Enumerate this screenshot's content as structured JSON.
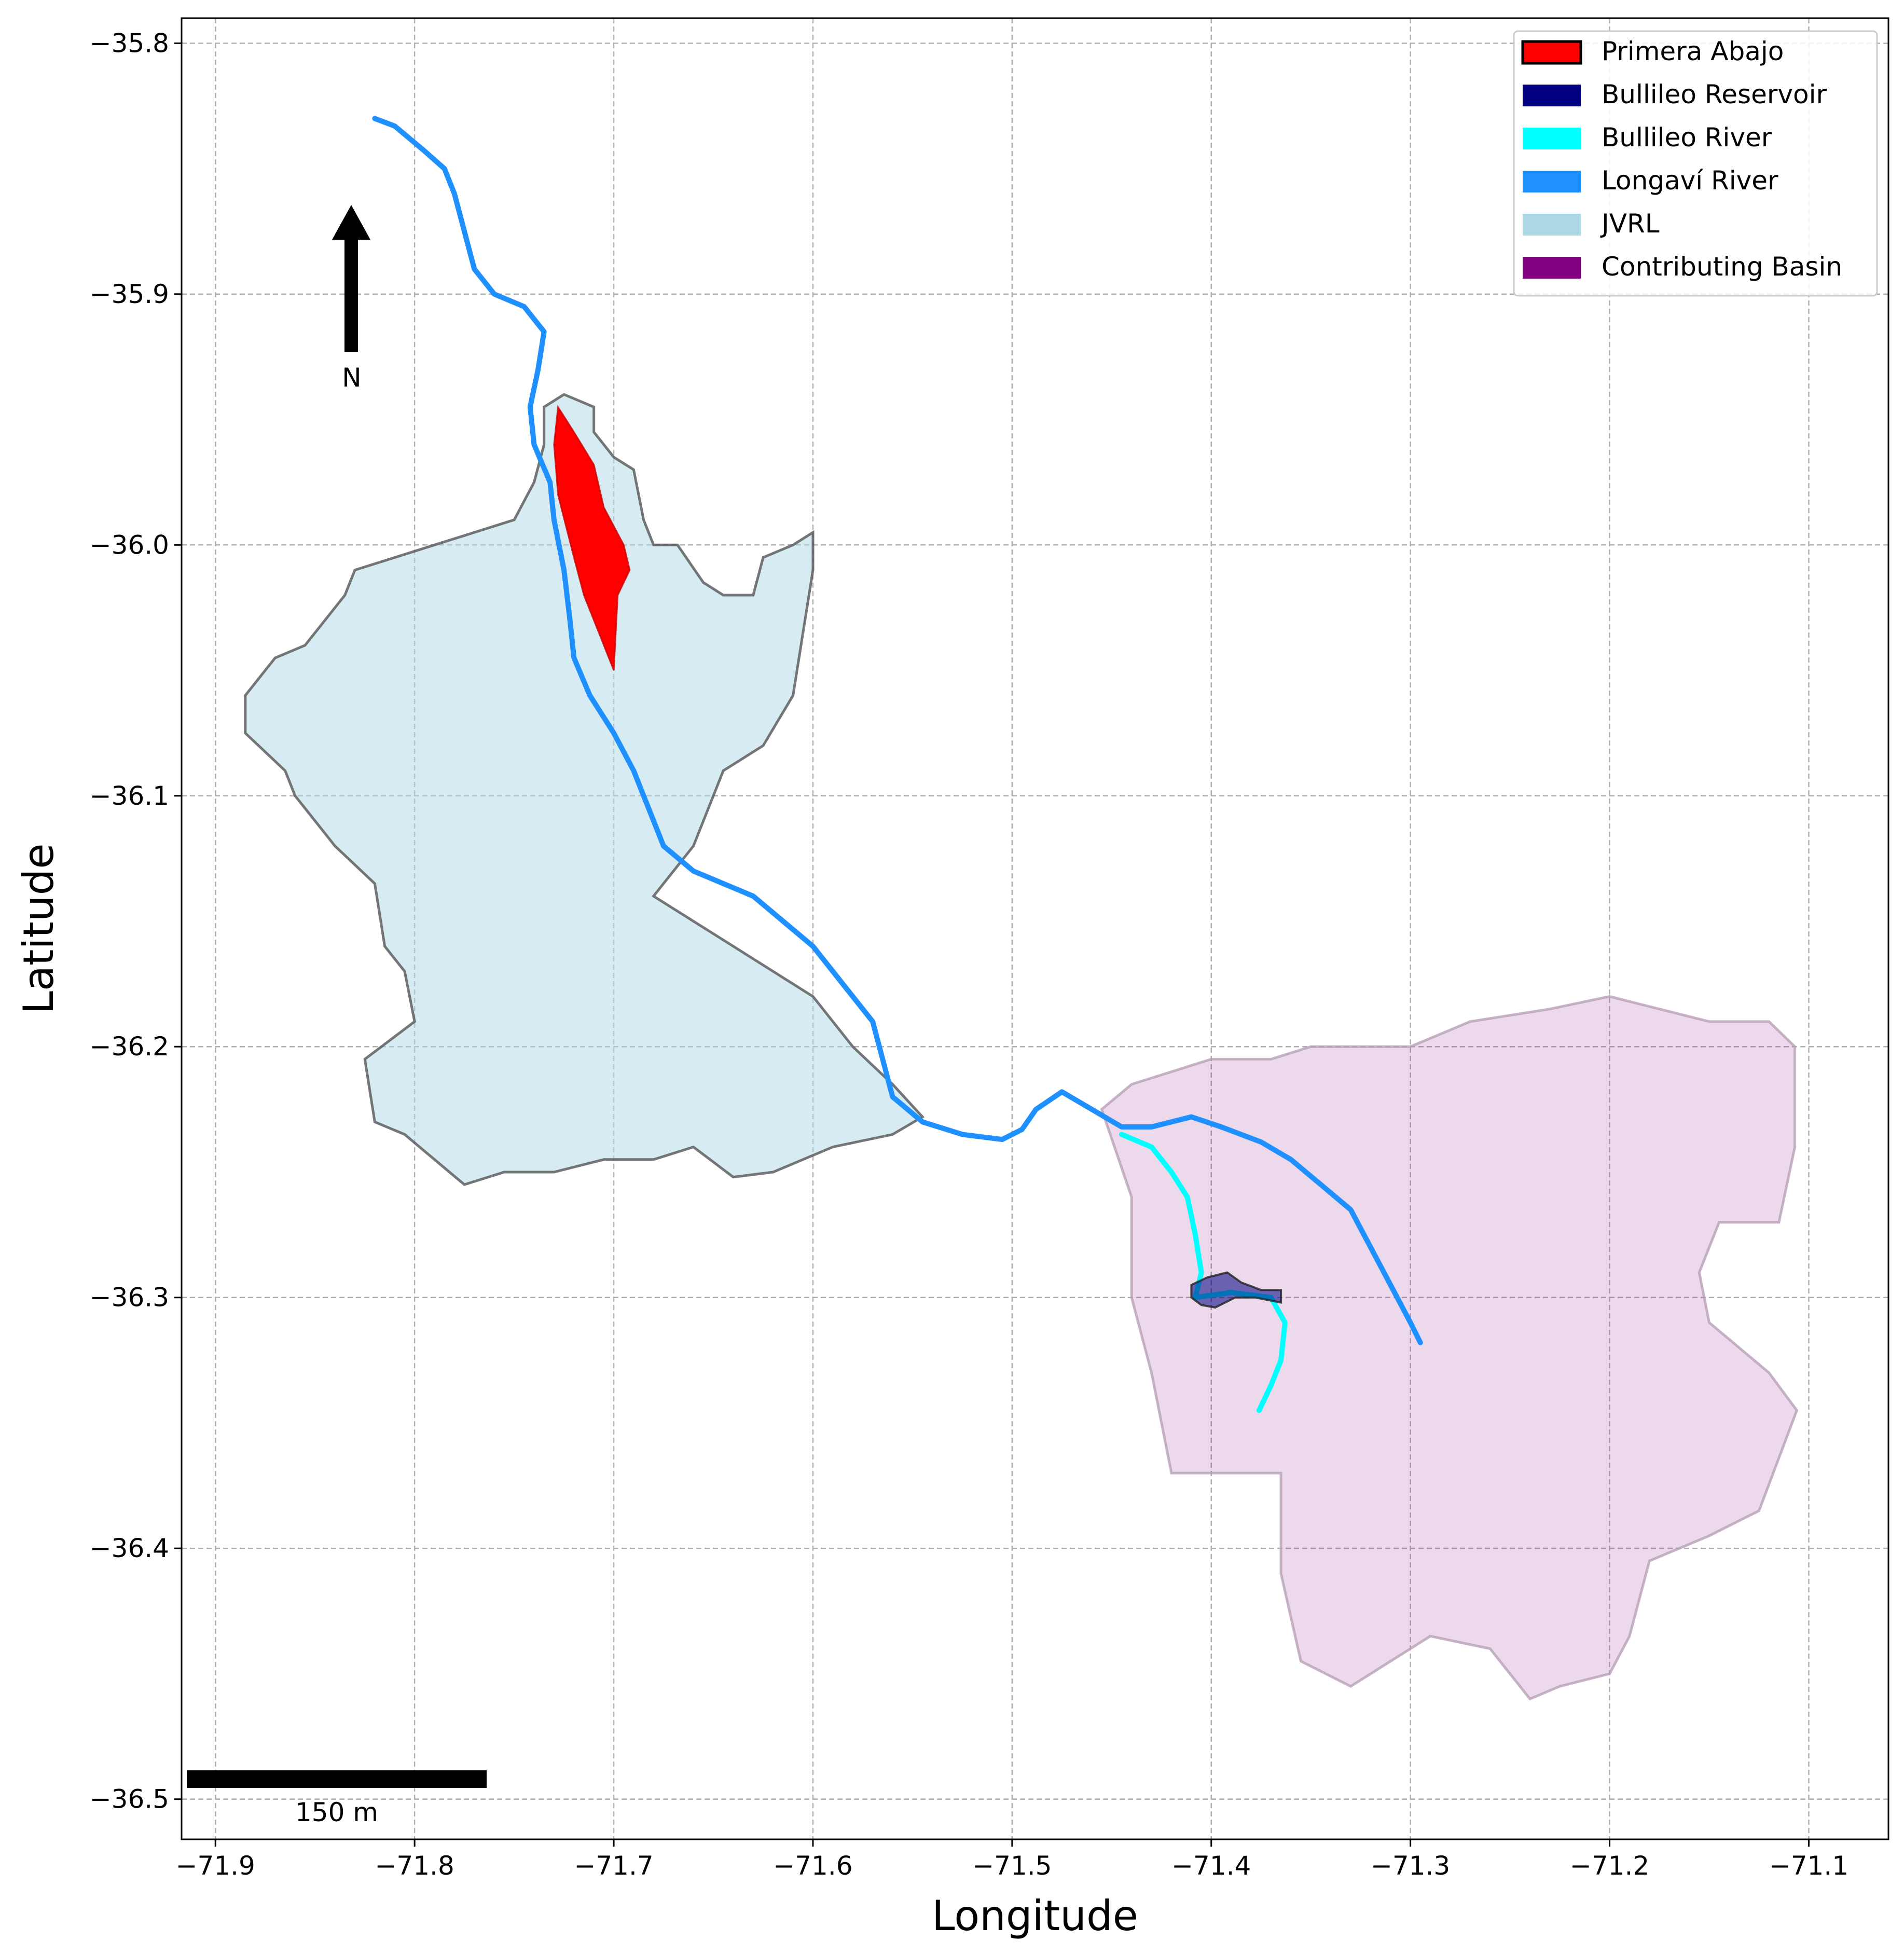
{
  "chart_data": {
    "type": "map",
    "xlabel": "Longitude",
    "ylabel": "Latitude",
    "xlim": [
      -71.917,
      -71.06
    ],
    "ylim": [
      -36.516,
      -35.79
    ],
    "x_ticks": [
      {
        "value": -71.9,
        "label": "−71.9"
      },
      {
        "value": -71.8,
        "label": "−71.8"
      },
      {
        "value": -71.7,
        "label": "−71.7"
      },
      {
        "value": -71.6,
        "label": "−71.6"
      },
      {
        "value": -71.5,
        "label": "−71.5"
      },
      {
        "value": -71.4,
        "label": "−71.4"
      },
      {
        "value": -71.3,
        "label": "−71.3"
      },
      {
        "value": -71.2,
        "label": "−71.2"
      },
      {
        "value": -71.1,
        "label": "−71.1"
      }
    ],
    "y_ticks": [
      {
        "value": -35.8,
        "label": "−35.8"
      },
      {
        "value": -35.9,
        "label": "−35.9"
      },
      {
        "value": -36.0,
        "label": "−36.0"
      },
      {
        "value": -36.1,
        "label": "−36.1"
      },
      {
        "value": -36.2,
        "label": "−36.2"
      },
      {
        "value": -36.3,
        "label": "−36.3"
      },
      {
        "value": -36.4,
        "label": "−36.4"
      },
      {
        "value": -36.5,
        "label": "−36.5"
      }
    ],
    "grid": true,
    "legend_position": "top-right",
    "north_arrow_label": "N",
    "scale_bar_label": "150 m",
    "layers": [
      {
        "name": "Contributing Basin",
        "color": "#800080",
        "fill_opacity": 0.15,
        "kind": "polygon",
        "coords": [
          [
            -71.455,
            -36.225
          ],
          [
            -71.44,
            -36.215
          ],
          [
            -71.42,
            -36.21
          ],
          [
            -71.4,
            -36.205
          ],
          [
            -71.37,
            -36.205
          ],
          [
            -71.35,
            -36.2
          ],
          [
            -71.3,
            -36.2
          ],
          [
            -71.27,
            -36.19
          ],
          [
            -71.23,
            -36.185
          ],
          [
            -71.2,
            -36.18
          ],
          [
            -71.175,
            -36.185
          ],
          [
            -71.15,
            -36.19
          ],
          [
            -71.12,
            -36.19
          ],
          [
            -71.107,
            -36.2
          ],
          [
            -71.107,
            -36.24
          ],
          [
            -71.115,
            -36.27
          ],
          [
            -71.145,
            -36.27
          ],
          [
            -71.155,
            -36.29
          ],
          [
            -71.15,
            -36.31
          ],
          [
            -71.12,
            -36.33
          ],
          [
            -71.106,
            -36.345
          ],
          [
            -71.125,
            -36.385
          ],
          [
            -71.15,
            -36.395
          ],
          [
            -71.18,
            -36.405
          ],
          [
            -71.19,
            -36.435
          ],
          [
            -71.2,
            -36.45
          ],
          [
            -71.225,
            -36.455
          ],
          [
            -71.24,
            -36.46
          ],
          [
            -71.26,
            -36.44
          ],
          [
            -71.29,
            -36.435
          ],
          [
            -71.31,
            -36.445
          ],
          [
            -71.33,
            -36.455
          ],
          [
            -71.355,
            -36.445
          ],
          [
            -71.365,
            -36.41
          ],
          [
            -71.365,
            -36.37
          ],
          [
            -71.4,
            -36.37
          ],
          [
            -71.42,
            -36.37
          ],
          [
            -71.43,
            -36.33
          ],
          [
            -71.44,
            -36.3
          ],
          [
            -71.44,
            -36.26
          ],
          [
            -71.455,
            -36.225
          ]
        ]
      },
      {
        "name": "JVRL",
        "color": "#add8e6",
        "fill_opacity": 0.5,
        "kind": "polygon",
        "coords": [
          [
            -71.735,
            -35.945
          ],
          [
            -71.725,
            -35.94
          ],
          [
            -71.71,
            -35.945
          ],
          [
            -71.71,
            -35.955
          ],
          [
            -71.7,
            -35.965
          ],
          [
            -71.69,
            -35.97
          ],
          [
            -71.685,
            -35.99
          ],
          [
            -71.68,
            -36.0
          ],
          [
            -71.668,
            -36.0
          ],
          [
            -71.655,
            -36.015
          ],
          [
            -71.645,
            -36.02
          ],
          [
            -71.63,
            -36.02
          ],
          [
            -71.625,
            -36.005
          ],
          [
            -71.61,
            -36.0
          ],
          [
            -71.6,
            -35.995
          ],
          [
            -71.6,
            -36.01
          ],
          [
            -71.61,
            -36.06
          ],
          [
            -71.625,
            -36.08
          ],
          [
            -71.645,
            -36.09
          ],
          [
            -71.66,
            -36.12
          ],
          [
            -71.68,
            -36.14
          ],
          [
            -71.6,
            -36.18
          ],
          [
            -71.58,
            -36.2
          ],
          [
            -71.56,
            -36.215
          ],
          [
            -71.545,
            -36.228
          ],
          [
            -71.56,
            -36.235
          ],
          [
            -71.59,
            -36.24
          ],
          [
            -71.62,
            -36.25
          ],
          [
            -71.64,
            -36.252
          ],
          [
            -71.66,
            -36.24
          ],
          [
            -71.68,
            -36.245
          ],
          [
            -71.705,
            -36.245
          ],
          [
            -71.73,
            -36.25
          ],
          [
            -71.755,
            -36.25
          ],
          [
            -71.775,
            -36.255
          ],
          [
            -71.79,
            -36.245
          ],
          [
            -71.805,
            -36.235
          ],
          [
            -71.82,
            -36.23
          ],
          [
            -71.825,
            -36.205
          ],
          [
            -71.8,
            -36.19
          ],
          [
            -71.805,
            -36.17
          ],
          [
            -71.815,
            -36.16
          ],
          [
            -71.82,
            -36.135
          ],
          [
            -71.84,
            -36.12
          ],
          [
            -71.85,
            -36.11
          ],
          [
            -71.86,
            -36.1
          ],
          [
            -71.865,
            -36.09
          ],
          [
            -71.885,
            -36.075
          ],
          [
            -71.885,
            -36.06
          ],
          [
            -71.875,
            -36.05
          ],
          [
            -71.87,
            -36.045
          ],
          [
            -71.855,
            -36.04
          ],
          [
            -71.845,
            -36.03
          ],
          [
            -71.835,
            -36.02
          ],
          [
            -71.83,
            -36.01
          ],
          [
            -71.81,
            -36.005
          ],
          [
            -71.79,
            -36.0
          ],
          [
            -71.77,
            -35.995
          ],
          [
            -71.75,
            -35.99
          ],
          [
            -71.74,
            -35.975
          ],
          [
            -71.735,
            -35.96
          ],
          [
            -71.735,
            -35.945
          ]
        ]
      },
      {
        "name": "Primera Abajo",
        "color": "#ff0000",
        "fill_opacity": 1.0,
        "kind": "polygon",
        "coords": [
          [
            -71.728,
            -35.945
          ],
          [
            -71.72,
            -35.955
          ],
          [
            -71.71,
            -35.968
          ],
          [
            -71.705,
            -35.985
          ],
          [
            -71.695,
            -36.0
          ],
          [
            -71.692,
            -36.01
          ],
          [
            -71.698,
            -36.02
          ],
          [
            -71.7,
            -36.05
          ],
          [
            -71.705,
            -36.04
          ],
          [
            -71.715,
            -36.02
          ],
          [
            -71.72,
            -36.005
          ],
          [
            -71.728,
            -35.98
          ],
          [
            -71.73,
            -35.96
          ],
          [
            -71.728,
            -35.945
          ]
        ]
      },
      {
        "name": "Longaví River",
        "color": "#1e90ff",
        "fill_opacity": 0,
        "kind": "line",
        "coords": [
          [
            -71.82,
            -35.83
          ],
          [
            -71.81,
            -35.833
          ],
          [
            -71.795,
            -35.843
          ],
          [
            -71.785,
            -35.85
          ],
          [
            -71.78,
            -35.86
          ],
          [
            -71.775,
            -35.875
          ],
          [
            -71.77,
            -35.89
          ],
          [
            -71.76,
            -35.9
          ],
          [
            -71.745,
            -35.905
          ],
          [
            -71.735,
            -35.915
          ],
          [
            -71.738,
            -35.93
          ],
          [
            -71.742,
            -35.945
          ],
          [
            -71.74,
            -35.96
          ],
          [
            -71.732,
            -35.975
          ],
          [
            -71.73,
            -35.99
          ],
          [
            -71.725,
            -36.01
          ],
          [
            -71.722,
            -36.03
          ],
          [
            -71.72,
            -36.045
          ],
          [
            -71.712,
            -36.06
          ],
          [
            -71.7,
            -36.075
          ],
          [
            -71.69,
            -36.09
          ],
          [
            -71.675,
            -36.12
          ],
          [
            -71.66,
            -36.13
          ],
          [
            -71.63,
            -36.14
          ],
          [
            -71.6,
            -36.16
          ],
          [
            -71.585,
            -36.175
          ],
          [
            -71.57,
            -36.19
          ],
          [
            -71.565,
            -36.205
          ],
          [
            -71.56,
            -36.22
          ],
          [
            -71.545,
            -36.23
          ],
          [
            -71.525,
            -36.235
          ],
          [
            -71.505,
            -36.237
          ],
          [
            -71.495,
            -36.233
          ],
          [
            -71.488,
            -36.225
          ],
          [
            -71.475,
            -36.218
          ],
          [
            -71.46,
            -36.225
          ],
          [
            -71.445,
            -36.232
          ],
          [
            -71.43,
            -36.232
          ],
          [
            -71.41,
            -36.228
          ],
          [
            -71.395,
            -36.232
          ],
          [
            -71.375,
            -36.238
          ],
          [
            -71.36,
            -36.245
          ],
          [
            -71.345,
            -36.255
          ],
          [
            -71.33,
            -36.265
          ],
          [
            -71.32,
            -36.28
          ],
          [
            -71.31,
            -36.295
          ],
          [
            -71.3,
            -36.31
          ],
          [
            -71.295,
            -36.318
          ]
        ]
      },
      {
        "name": "Bullileo River",
        "color": "#00ffff",
        "fill_opacity": 0,
        "kind": "line",
        "coords": [
          [
            -71.445,
            -36.235
          ],
          [
            -71.43,
            -36.24
          ],
          [
            -71.42,
            -36.25
          ],
          [
            -71.412,
            -36.26
          ],
          [
            -71.408,
            -36.275
          ],
          [
            -71.405,
            -36.29
          ],
          [
            -71.408,
            -36.3
          ],
          [
            -71.39,
            -36.298
          ],
          [
            -71.37,
            -36.3
          ],
          [
            -71.363,
            -36.31
          ],
          [
            -71.365,
            -36.325
          ],
          [
            -71.37,
            -36.335
          ],
          [
            -71.376,
            -36.345
          ]
        ]
      },
      {
        "name": "Bullileo Reservoir",
        "color": "#000080",
        "fill_opacity": 0.55,
        "kind": "polygon",
        "coords": [
          [
            -71.41,
            -36.295
          ],
          [
            -71.402,
            -36.292
          ],
          [
            -71.392,
            -36.29
          ],
          [
            -71.385,
            -36.294
          ],
          [
            -71.375,
            -36.297
          ],
          [
            -71.365,
            -36.297
          ],
          [
            -71.365,
            -36.302
          ],
          [
            -71.378,
            -36.3
          ],
          [
            -71.388,
            -36.3
          ],
          [
            -71.398,
            -36.304
          ],
          [
            -71.405,
            -36.303
          ],
          [
            -71.41,
            -36.3
          ],
          [
            -71.41,
            -36.295
          ]
        ]
      }
    ]
  }
}
